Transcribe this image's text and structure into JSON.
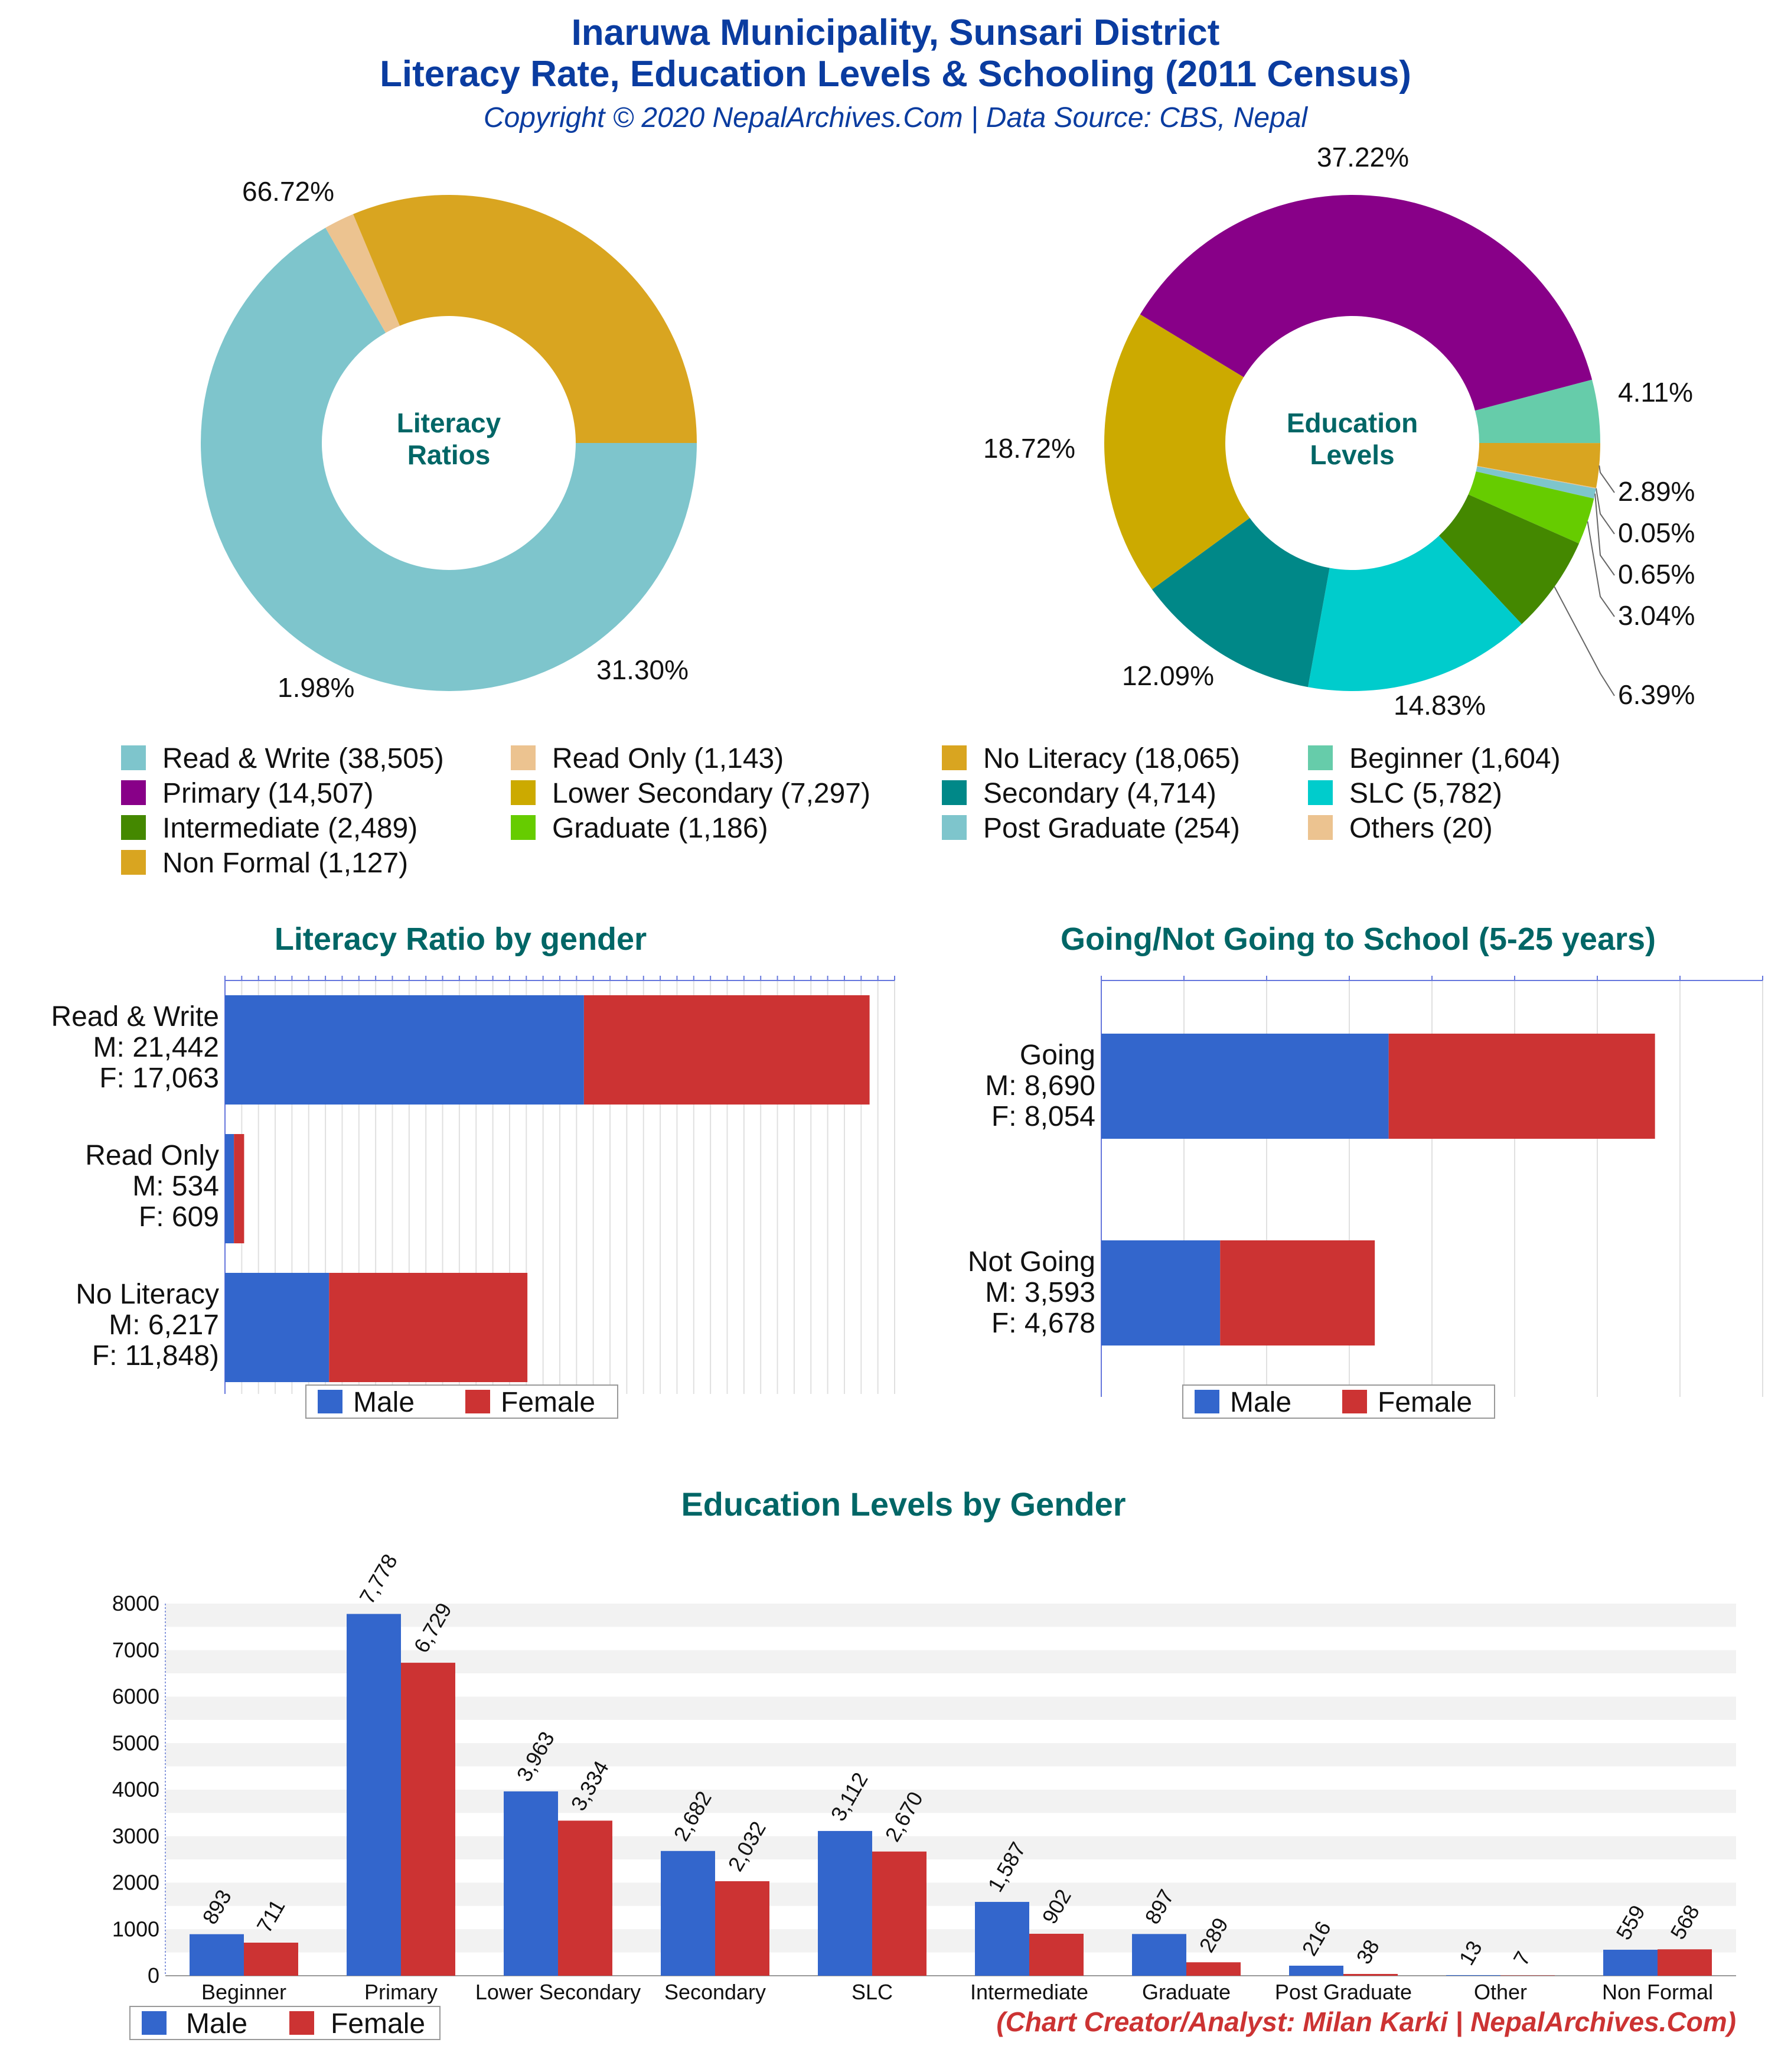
{
  "header": {
    "title_line1": "Inaruwa Municipality, Sunsari District",
    "title_line2": "Literacy Rate, Education Levels & Schooling (2011 Census)",
    "copyright": "Copyright © 2020 NepalArchives.Com | Data Source: CBS, Nepal"
  },
  "footer": {
    "credit": "(Chart Creator/Analyst: Milan Karki | NepalArchives.Com)"
  },
  "colors": {
    "male": "#3366cc",
    "female": "#cc3333",
    "title_teal": "#006666",
    "header_blue": "#0a3ca0"
  },
  "chart_data": [
    {
      "type": "pie",
      "variant": "donut",
      "center_label": [
        "Literacy",
        "Ratios"
      ],
      "slices": [
        {
          "label": "Read & Write",
          "value": 38505,
          "percent_label": "66.72%",
          "color": "#7ec5cc"
        },
        {
          "label": "Read Only",
          "value": 1143,
          "percent_label": "1.98%",
          "color": "#ecc390"
        },
        {
          "label": "No Literacy",
          "value": 18065,
          "percent_label": "31.30%",
          "color": "#d9a520"
        }
      ]
    },
    {
      "type": "pie",
      "variant": "donut",
      "center_label": [
        "Education",
        "Levels"
      ],
      "slices": [
        {
          "label": "Beginner",
          "value": 1604,
          "percent_label": "4.11%",
          "color": "#66ccaa"
        },
        {
          "label": "Non Formal",
          "value": 1127,
          "percent_label": "2.89%",
          "color": "#d9a520"
        },
        {
          "label": "Others",
          "value": 20,
          "percent_label": "0.05%",
          "color": "#ecc390"
        },
        {
          "label": "Post Graduate",
          "value": 254,
          "percent_label": "0.65%",
          "color": "#7ec5cc"
        },
        {
          "label": "Graduate",
          "value": 1186,
          "percent_label": "3.04%",
          "color": "#66cc00"
        },
        {
          "label": "Intermediate",
          "value": 2489,
          "percent_label": "6.39%",
          "color": "#448800"
        },
        {
          "label": "SLC",
          "value": 5782,
          "percent_label": "14.83%",
          "color": "#00cccc"
        },
        {
          "label": "Secondary",
          "value": 4714,
          "percent_label": "12.09%",
          "color": "#008888"
        },
        {
          "label": "Lower Secondary",
          "value": 7297,
          "percent_label": "18.72%",
          "color": "#ccaa00"
        },
        {
          "label": "Primary",
          "value": 14507,
          "percent_label": "37.22%",
          "color": "#880088"
        }
      ]
    },
    {
      "type": "bar",
      "orientation": "horizontal",
      "stacked": true,
      "title": "Literacy Ratio by gender",
      "categories": [
        [
          "Read & Write",
          "M: 21,442",
          "F: 17,063"
        ],
        [
          "Read Only",
          "M: 534",
          "F: 609"
        ],
        [
          "No Literacy",
          "M: 6,217",
          "F: 11,848)"
        ]
      ],
      "series": [
        {
          "name": "Male",
          "values": [
            21442,
            534,
            6217
          ]
        },
        {
          "name": "Female",
          "values": [
            17063,
            609,
            11848
          ]
        }
      ],
      "xlim": [
        0,
        40000
      ],
      "legend": "bottom"
    },
    {
      "type": "bar",
      "orientation": "horizontal",
      "stacked": true,
      "title": "Going/Not Going to School (5-25 years)",
      "categories": [
        [
          "Going",
          "M: 8,690",
          "F: 8,054"
        ],
        [
          "Not Going",
          "M: 3,593",
          "F: 4,678"
        ]
      ],
      "series": [
        {
          "name": "Male",
          "values": [
            8690,
            3593
          ]
        },
        {
          "name": "Female",
          "values": [
            8054,
            4678
          ]
        }
      ],
      "xlim": [
        0,
        20000
      ],
      "legend": "bottom"
    },
    {
      "type": "bar",
      "orientation": "vertical",
      "title": "Education Levels by Gender",
      "categories": [
        "Beginner",
        "Primary",
        "Lower Secondary",
        "Secondary",
        "SLC",
        "Intermediate",
        "Graduate",
        "Post Graduate",
        "Other",
        "Non Formal"
      ],
      "series": [
        {
          "name": "Male",
          "values": [
            893,
            7778,
            3963,
            2682,
            3112,
            1587,
            897,
            216,
            13,
            559
          ],
          "value_labels": [
            "893",
            "7,778",
            "3,963",
            "2,682",
            "3,112",
            "1,587",
            "897",
            "216",
            "13",
            "559"
          ]
        },
        {
          "name": "Female",
          "values": [
            711,
            6729,
            3334,
            2032,
            2670,
            902,
            289,
            38,
            7,
            568
          ],
          "value_labels": [
            "711",
            "6,729",
            "3,334",
            "2,032",
            "2,670",
            "902",
            "289",
            "38",
            "7",
            "568"
          ]
        }
      ],
      "ylim": [
        0,
        8000
      ],
      "yticks": [
        "0",
        "1000",
        "2000",
        "3000",
        "4000",
        "5000",
        "6000",
        "7000",
        "8000"
      ],
      "legend": "bottom-left"
    }
  ],
  "legend_pies": [
    "Read & Write (38,505)",
    "Read Only (1,143)",
    "No Literacy (18,065)",
    "Beginner (1,604)",
    "Primary (14,507)",
    "Lower Secondary (7,297)",
    "Secondary (4,714)",
    "SLC (5,782)",
    "Intermediate (2,489)",
    "Graduate (1,186)",
    "Post Graduate (254)",
    "Others (20)",
    "Non Formal (1,127)"
  ]
}
